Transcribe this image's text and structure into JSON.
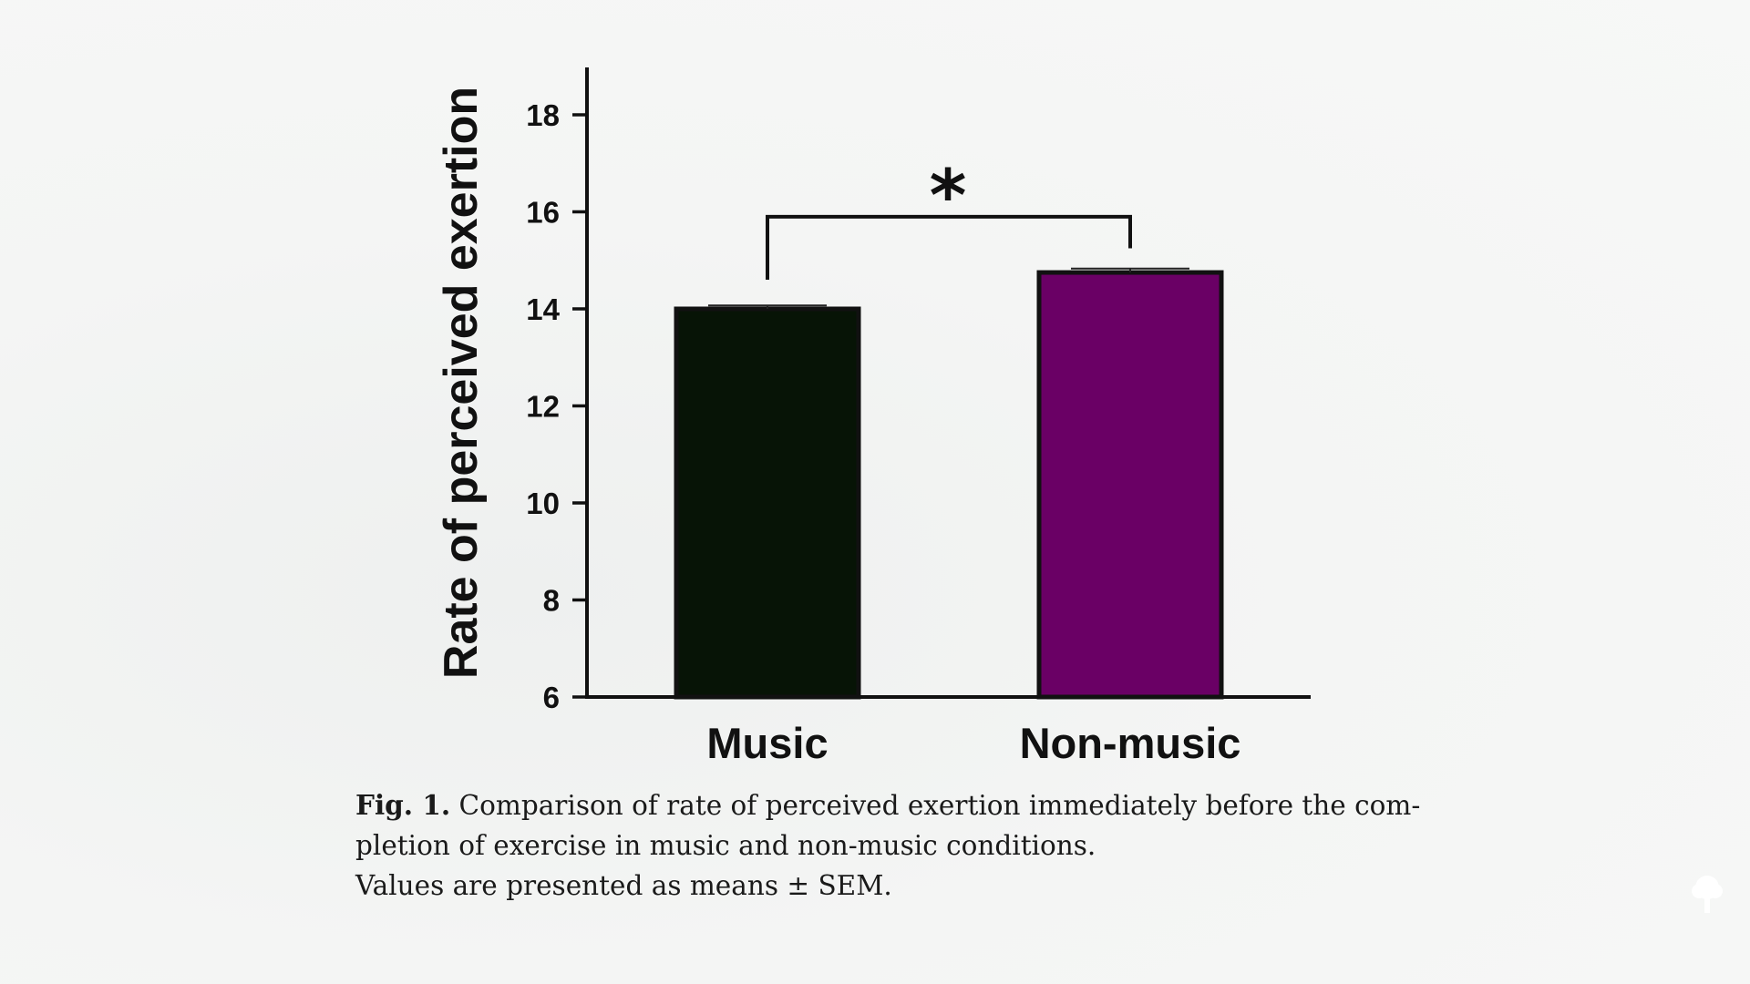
{
  "chart_data": {
    "type": "bar",
    "categories": [
      "Music",
      "Non-music"
    ],
    "values": [
      14.0,
      14.75
    ],
    "errors": [
      0.07,
      0.08
    ],
    "colors": [
      "#071406",
      "#6a0065"
    ],
    "title": "",
    "xlabel": "",
    "ylabel": "Rate of perceived exertion",
    "ylim": [
      6,
      19
    ],
    "yticks": [
      6,
      8,
      10,
      12,
      14,
      16,
      18
    ],
    "grid": false,
    "legend": "none",
    "significance": {
      "between": [
        "Music",
        "Non-music"
      ],
      "marker": "*"
    }
  },
  "caption": {
    "fig_label": "Fig. 1.",
    "line1": "Comparison of rate of perceived exertion immediately before the com-",
    "line2": "pletion of exercise in music and non-music conditions.",
    "line3": "Values are presented as means ± SEM."
  },
  "corner_icon": "tree-icon"
}
